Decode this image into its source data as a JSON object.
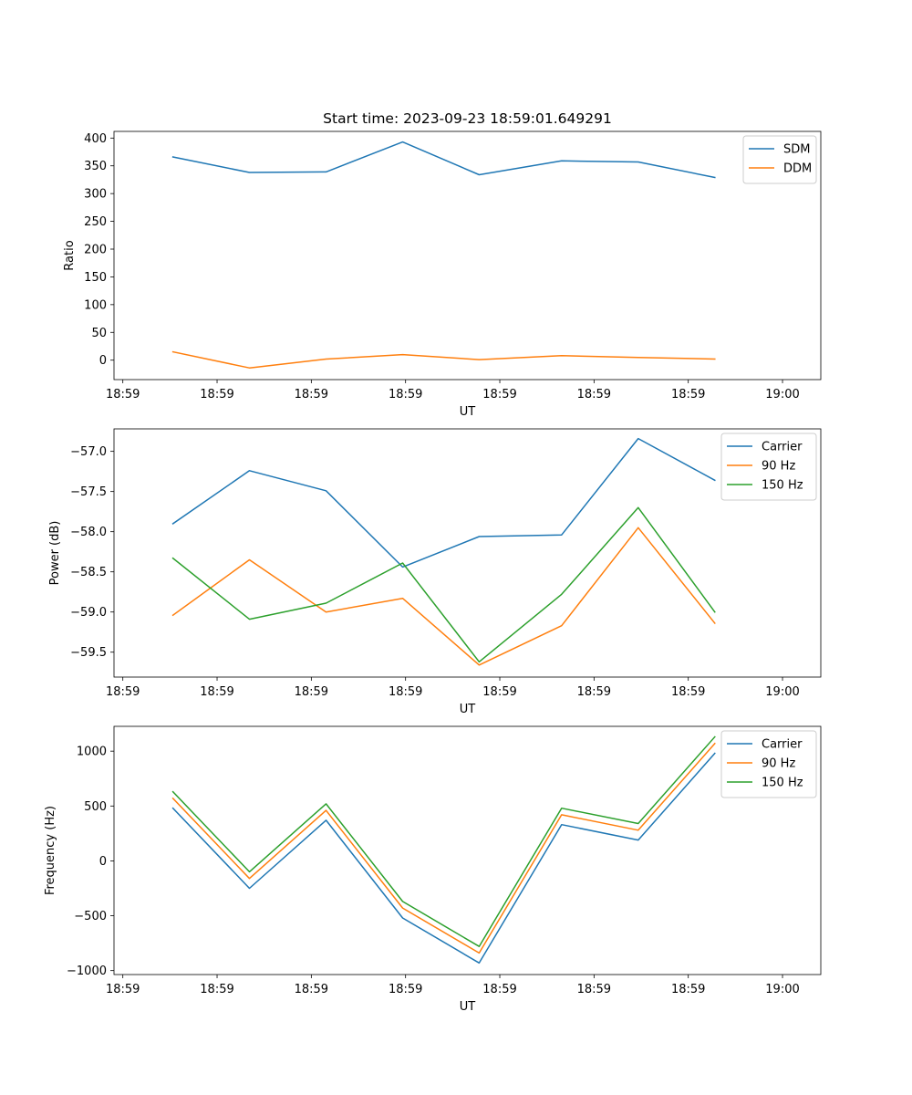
{
  "chart_data": [
    {
      "type": "line",
      "title": "Start time: 2023-09-23 18:59:01.649291",
      "xlabel": "UT",
      "ylabel": "Ratio",
      "x_tick_labels": [
        "18:59",
        "18:59",
        "18:59",
        "18:59",
        "18:59",
        "18:59",
        "18:59",
        "19:00"
      ],
      "xlim": [
        0,
        12
      ],
      "x": [
        1,
        2.3,
        3.6,
        4.9,
        6.2,
        7.6,
        8.9,
        10.2
      ],
      "ylim": [
        -35,
        412
      ],
      "yticks": [
        0,
        50,
        100,
        150,
        200,
        250,
        300,
        350,
        400
      ],
      "legend_position": "top-right",
      "series": [
        {
          "name": "SDM",
          "color": "#1f77b4",
          "values": [
            366,
            338,
            339,
            393,
            334,
            359,
            357,
            329
          ]
        },
        {
          "name": "DDM",
          "color": "#ff7f0e",
          "values": [
            15,
            -14,
            2,
            10,
            1,
            8,
            5,
            2
          ]
        }
      ]
    },
    {
      "type": "line",
      "title": "",
      "xlabel": "UT",
      "ylabel": "Power (dB)",
      "x_tick_labels": [
        "18:59",
        "18:59",
        "18:59",
        "18:59",
        "18:59",
        "18:59",
        "18:59",
        "19:00"
      ],
      "xlim": [
        0,
        12
      ],
      "x": [
        1,
        2.3,
        3.6,
        4.9,
        6.2,
        7.6,
        8.9,
        10.2
      ],
      "ylim": [
        -59.81,
        -56.72
      ],
      "yticks": [
        -59.5,
        -59.0,
        -58.5,
        -58.0,
        -57.5,
        -57.0
      ],
      "ytick_labels": [
        "−59.5",
        "−59.0",
        "−58.5",
        "−58.0",
        "−57.5",
        "−57.0"
      ],
      "legend_position": "top-right",
      "series": [
        {
          "name": "Carrier",
          "color": "#1f77b4",
          "values": [
            -57.9,
            -57.24,
            -57.49,
            -58.44,
            -58.06,
            -58.04,
            -56.84,
            -57.36
          ]
        },
        {
          "name": "90 Hz",
          "color": "#ff7f0e",
          "values": [
            -59.04,
            -58.35,
            -59.0,
            -58.83,
            -59.66,
            -59.17,
            -57.95,
            -59.14
          ]
        },
        {
          "name": "150 Hz",
          "color": "#2ca02c",
          "values": [
            -58.33,
            -59.09,
            -58.89,
            -58.39,
            -59.62,
            -58.78,
            -57.7,
            -59.0
          ]
        }
      ]
    },
    {
      "type": "line",
      "title": "",
      "xlabel": "UT",
      "ylabel": "Frequency (Hz)",
      "x_tick_labels": [
        "18:59",
        "18:59",
        "18:59",
        "18:59",
        "18:59",
        "18:59",
        "18:59",
        "19:00"
      ],
      "xlim": [
        0,
        12
      ],
      "x": [
        1,
        2.3,
        3.6,
        4.9,
        6.2,
        7.6,
        8.9,
        10.2
      ],
      "ylim": [
        -1036,
        1226
      ],
      "yticks": [
        -1000,
        -500,
        0,
        500,
        1000
      ],
      "ytick_labels": [
        "−1000",
        "−500",
        "0",
        "500",
        "1000"
      ],
      "legend_position": "top-right",
      "series": [
        {
          "name": "Carrier",
          "color": "#1f77b4",
          "values": [
            480,
            -250,
            370,
            -520,
            -930,
            330,
            190,
            980
          ]
        },
        {
          "name": "90 Hz",
          "color": "#ff7f0e",
          "values": [
            570,
            -160,
            460,
            -430,
            -840,
            420,
            280,
            1070
          ]
        },
        {
          "name": "150 Hz",
          "color": "#2ca02c",
          "values": [
            630,
            -100,
            520,
            -370,
            -780,
            480,
            340,
            1130
          ]
        }
      ]
    }
  ]
}
